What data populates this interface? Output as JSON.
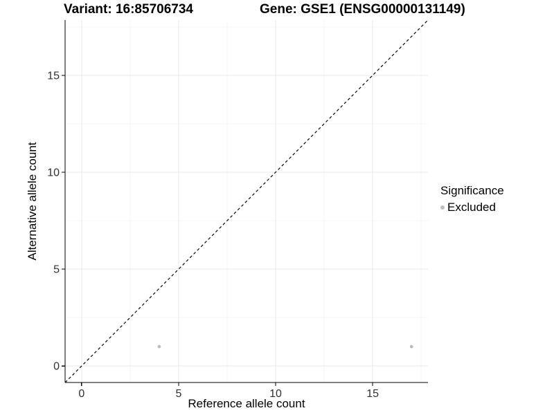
{
  "figure": {
    "title_left": "Variant: 16:85706734",
    "title_right": "Gene: GSE1 (ENSG00000131149)"
  },
  "chart_data": {
    "type": "scatter",
    "title": "Variant: 16:85706734 — Gene: GSE1 (ENSG00000131149)",
    "xlabel": "Reference allele count",
    "ylabel": "Alternative allele count",
    "xlim": [
      -0.85,
      17.85
    ],
    "ylim": [
      -0.85,
      17.85
    ],
    "x_ticks": [
      0,
      5,
      10,
      15
    ],
    "y_ticks": [
      0,
      5,
      10,
      15
    ],
    "x_minor_ticks": [
      2.5,
      7.5,
      12.5,
      17.5
    ],
    "y_minor_ticks": [
      2.5,
      7.5,
      12.5,
      17.5
    ],
    "grid": true,
    "series": [
      {
        "name": "Excluded",
        "points": [
          {
            "x": 4,
            "y": 1
          },
          {
            "x": 17,
            "y": 1
          }
        ],
        "color": "#bdbdbd",
        "point_radius": 2.4
      }
    ],
    "reference_line": {
      "type": "identity",
      "slope": 1,
      "intercept": 0,
      "style": "dashed",
      "color": "#000000"
    },
    "legend": {
      "title": "Significance",
      "position": "right",
      "items": [
        {
          "label": "Excluded",
          "color": "#bdbdbd"
        }
      ]
    },
    "colors": {
      "background": "#ffffff",
      "grid_major": "#e8e8e8",
      "grid_minor": "#f4f4f4",
      "axis_line": "#000000",
      "tick_label": "#303030"
    }
  }
}
